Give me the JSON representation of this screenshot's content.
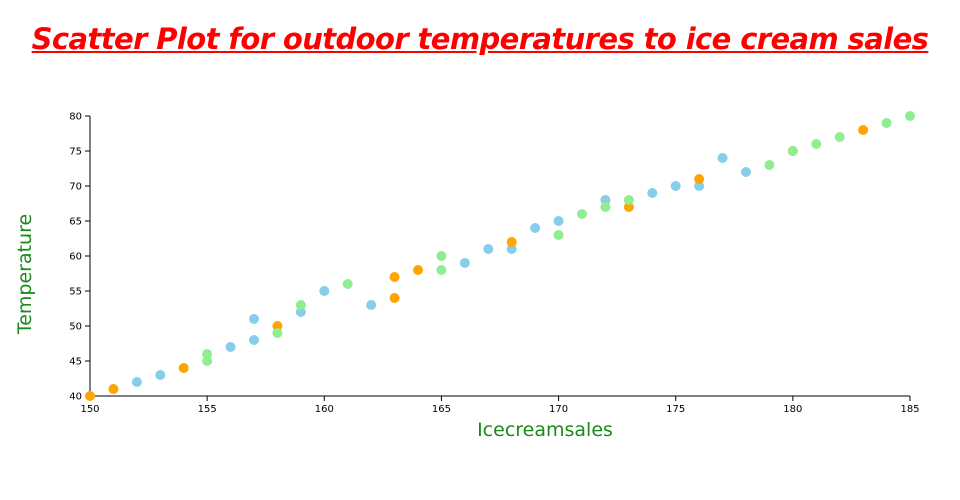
{
  "chart_data": {
    "type": "scatter",
    "title": "Scatter Plot for outdoor temperatures to ice cream sales",
    "xlabel": "Icecreamsales",
    "ylabel": "Temperature",
    "xlim": [
      150,
      185
    ],
    "ylim": [
      40,
      80
    ],
    "x_ticks": [
      "150",
      "155",
      "160",
      "165",
      "170",
      "175",
      "180",
      "185"
    ],
    "y_ticks": [
      "40",
      "45",
      "50",
      "55",
      "60",
      "65",
      "70",
      "75",
      "80"
    ],
    "grid": false,
    "legend": "none",
    "colors": {
      "title": "#ff0000",
      "axis_title": "#1a8a1a",
      "axis_line": "#000000"
    },
    "series": [
      {
        "color": "#87ceeb",
        "points": [
          [
            152,
            42
          ],
          [
            153,
            43
          ],
          [
            156,
            47
          ],
          [
            157,
            48
          ],
          [
            157,
            51
          ],
          [
            159,
            52
          ],
          [
            160,
            55
          ],
          [
            162,
            53
          ],
          [
            166,
            59
          ],
          [
            167,
            61
          ],
          [
            168,
            61
          ],
          [
            169,
            64
          ],
          [
            170,
            65
          ],
          [
            172,
            68
          ],
          [
            174,
            69
          ],
          [
            175,
            70
          ],
          [
            176,
            70
          ],
          [
            177,
            74
          ],
          [
            178,
            72
          ]
        ]
      },
      {
        "color": "#ffa500",
        "points": [
          [
            150,
            40
          ],
          [
            151,
            41
          ],
          [
            154,
            44
          ],
          [
            158,
            50
          ],
          [
            163,
            54
          ],
          [
            163,
            57
          ],
          [
            164,
            58
          ],
          [
            168,
            62
          ],
          [
            173,
            67
          ],
          [
            176,
            71
          ],
          [
            180,
            75
          ],
          [
            183,
            78
          ]
        ]
      },
      {
        "color": "#90ee90",
        "points": [
          [
            155,
            45
          ],
          [
            155,
            46
          ],
          [
            158,
            49
          ],
          [
            159,
            53
          ],
          [
            161,
            56
          ],
          [
            165,
            58
          ],
          [
            165,
            60
          ],
          [
            170,
            63
          ],
          [
            171,
            66
          ],
          [
            172,
            67
          ],
          [
            173,
            68
          ],
          [
            179,
            73
          ],
          [
            180,
            75
          ],
          [
            181,
            76
          ],
          [
            182,
            77
          ],
          [
            184,
            79
          ],
          [
            185,
            80
          ]
        ]
      }
    ]
  }
}
